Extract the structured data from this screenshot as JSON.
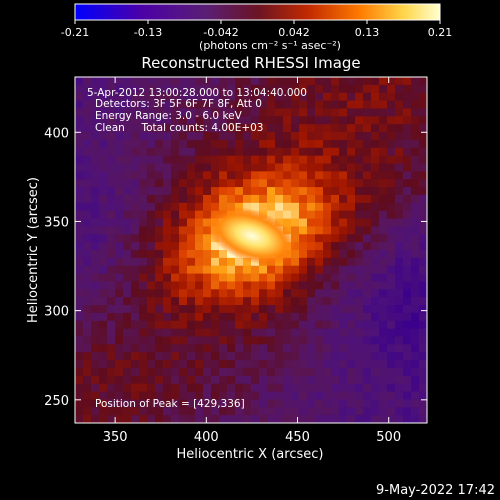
{
  "chart_data": {
    "type": "heatmap",
    "title": "Reconstructed RHESSI Image",
    "xlabel": "Heliocentric X (arcsec)",
    "ylabel": "Heliocentric Y (arcsec)",
    "xlim": [
      328,
      521
    ],
    "ylim": [
      237,
      431
    ],
    "x_ticks": [
      350,
      400,
      450,
      500
    ],
    "y_ticks": [
      250,
      300,
      350,
      400
    ],
    "colorbar": {
      "range": [
        -0.21,
        0.21
      ],
      "ticks": [
        "-0.21",
        "-0.13",
        "-0.042",
        "0.042",
        "0.13",
        "0.21"
      ],
      "unit_label": "(photons cm⁻² s⁻¹ asec⁻²)",
      "colors": [
        "#0000ff",
        "#4b00a8",
        "#5a1e74",
        "#6a1424",
        "#c22a00",
        "#ff7a00",
        "#ffd54a",
        "#ffffd0"
      ]
    },
    "peak_position": [
      429,
      336
    ],
    "annotations": [
      "5-Apr-2012 13:00:28.000 to 13:04:40.000",
      "Detectors: 3F 5F 6F 7F 8F, Att 0",
      "Energy Range: 3.0 - 6.0 keV",
      "Clean     Total counts: 4.00E+03"
    ],
    "peak_label": "Position of Peak = [429,336]",
    "grid": false
  },
  "footer": {
    "timestamp": "9-May-2022 17:42"
  }
}
